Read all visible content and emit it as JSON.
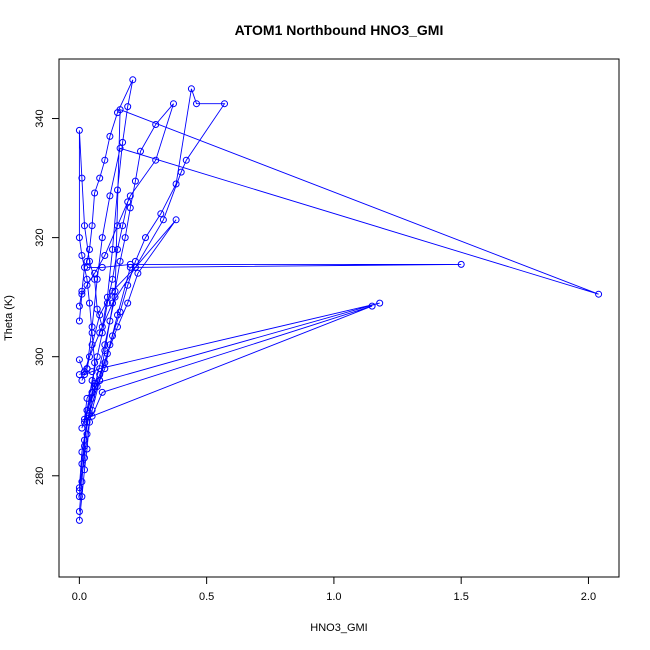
{
  "chart_data": {
    "type": "line",
    "title": "ATOM1 Northbound HNO3_GMI",
    "xlabel": "HNO3_GMI",
    "ylabel": "Theta (K)",
    "xlim": [
      -0.08,
      2.12
    ],
    "ylim": [
      263,
      350
    ],
    "xticks": [
      0.0,
      0.5,
      1.0,
      1.5,
      2.0
    ],
    "xtick_labels": [
      "0.0",
      "0.5",
      "1.0",
      "1.5",
      "2.0"
    ],
    "yticks": [
      280,
      300,
      320,
      340
    ],
    "ytick_labels": [
      "280",
      "300",
      "320",
      "340"
    ],
    "grid": false,
    "legend": "none",
    "color": "#0000ff",
    "series": [
      {
        "x": [
          0.0,
          0.01,
          0.02,
          0.03,
          0.04,
          0.05,
          0.06,
          0.05,
          0.04,
          0.03,
          0.01,
          0.0,
          0.0,
          0.01,
          0.02,
          0.04,
          0.06,
          0.07,
          0.09,
          0.11,
          0.13,
          0.15,
          0.17,
          0.19,
          0.21,
          0.15,
          0.12,
          0.1,
          0.08,
          0.06,
          0.05,
          0.04,
          0.03,
          0.02,
          0.01,
          0.0
        ],
        "y": [
          272.5,
          276.5,
          281.0,
          284.5,
          289.0,
          294.0,
          299.0,
          304.0,
          309.0,
          313.0,
          317.0,
          320.0,
          338.0,
          330.0,
          322.0,
          316.0,
          313.0,
          308.0,
          305.0,
          310.0,
          318.0,
          328.0,
          336.0,
          342.0,
          346.5,
          341.0,
          337.0,
          333.0,
          330.0,
          327.5,
          322.0,
          318.0,
          316.0,
          315.0,
          311.0,
          308.5
        ],
        "markers": true
      },
      {
        "x": [
          0.0,
          0.02,
          0.03,
          0.05,
          0.08,
          0.1,
          0.12,
          0.14,
          0.16,
          0.18,
          0.2,
          0.22,
          0.24,
          0.3,
          0.37,
          0.3,
          0.2,
          0.15,
          0.1,
          0.06,
          0.03,
          0.01,
          0.0
        ],
        "y": [
          277.5,
          283.0,
          287.0,
          291.0,
          296.0,
          301.0,
          306.0,
          311.0,
          316.0,
          320.0,
          325.0,
          329.5,
          334.5,
          339.0,
          342.5,
          333.0,
          327.0,
          322.0,
          317.0,
          314.0,
          312.0,
          310.5,
          306.0
        ],
        "markers": true
      },
      {
        "x": [
          0.0,
          0.01,
          0.02,
          0.04,
          0.07,
          0.1,
          0.13,
          0.16,
          0.19,
          0.22,
          0.26,
          0.32,
          0.38,
          0.44,
          0.46,
          0.57,
          0.42,
          0.4,
          0.33,
          0.22,
          0.13,
          0.08,
          0.05,
          0.03,
          0.01
        ],
        "y": [
          276.5,
          282.0,
          286.0,
          290.5,
          295.0,
          299.0,
          303.5,
          307.5,
          312.0,
          316.0,
          320.0,
          324.0,
          329.0,
          345.0,
          342.5,
          342.5,
          333.0,
          331.0,
          323.0,
          315.0,
          311.0,
          307.0,
          302.0,
          298.0,
          296.0
        ],
        "markers": true
      },
      {
        "x": [
          0.0,
          0.01,
          0.03,
          0.05,
          0.08,
          0.11,
          0.15,
          0.19,
          0.23,
          0.38,
          0.22,
          0.13,
          0.08,
          0.04,
          0.02,
          0.0
        ],
        "y": [
          278.0,
          284.0,
          289.0,
          293.0,
          297.0,
          300.5,
          305.0,
          309.0,
          314.0,
          323.0,
          315.0,
          309.0,
          304.0,
          300.0,
          297.5,
          297.0
        ],
        "markers": true
      },
      {
        "x": [
          0.01,
          0.03,
          0.05,
          0.08,
          0.1,
          0.12,
          0.15,
          0.2,
          1.5,
          0.2,
          0.09,
          0.03
        ],
        "y": [
          288.0,
          291.0,
          294.0,
          296.0,
          298.0,
          302.0,
          307.0,
          315.0,
          315.5,
          315.5,
          315.0,
          315.0
        ],
        "markers": true
      },
      {
        "x": [
          0.02,
          0.06,
          0.1,
          0.14,
          0.16,
          2.04,
          0.16,
          0.12,
          0.09,
          0.07,
          0.05,
          0.03
        ],
        "y": [
          289.0,
          295.0,
          302.0,
          310.0,
          341.5,
          310.5,
          335.0,
          327.0,
          320.0,
          313.0,
          305.0,
          298.0
        ],
        "markers": true
      },
      {
        "x": [
          0.0,
          0.02,
          0.05,
          0.08,
          1.18,
          0.06,
          0.03,
          0.02,
          1.15,
          0.09,
          0.05
        ],
        "y": [
          299.5,
          297.0,
          297.5,
          298.0,
          309.0,
          295.5,
          293.0,
          289.5,
          308.5,
          294.0,
          290.0
        ],
        "markers": true
      },
      {
        "x": [
          0.0,
          0.01,
          0.02,
          0.03,
          0.05,
          0.07,
          0.09,
          0.11,
          0.13,
          0.15,
          0.17,
          0.19
        ],
        "y": [
          274.0,
          279.0,
          285.0,
          291.0,
          296.0,
          300.0,
          304.0,
          309.0,
          313.0,
          318.0,
          322.0,
          326.0
        ],
        "markers": true
      }
    ]
  }
}
